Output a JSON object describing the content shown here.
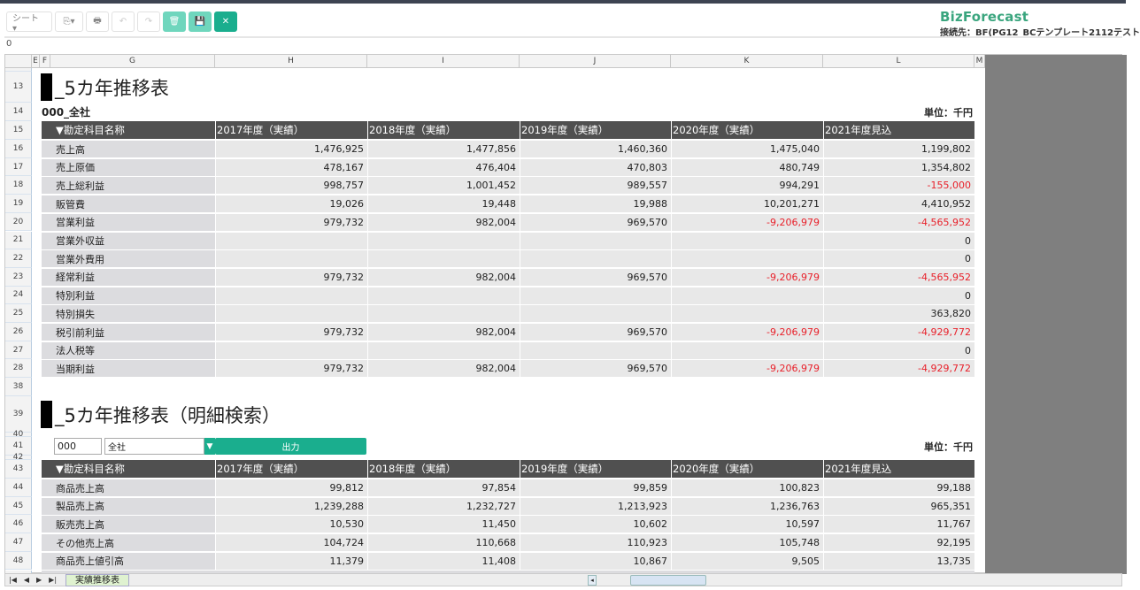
{
  "toolbar": {
    "sheet_label": "シート ▾",
    "export_label": "⎘▾",
    "print_label": "🖶",
    "undo_label": "↶",
    "redo_label": "↷",
    "delete_label": "🗑",
    "save_label": "💾",
    "close_label": "✕"
  },
  "brand": {
    "logo": "BizForecast",
    "connection": "接続先：BF(PG12_BCテンプレート2112テスト"
  },
  "formula_bar": {
    "value": "0"
  },
  "columns": [
    "E",
    "F",
    "G",
    "H",
    "I",
    "J",
    "K",
    "L",
    "M"
  ],
  "section1": {
    "title": "_5カ年推移表",
    "subtitle": "000_全社",
    "unit": "単位：千円",
    "row_numbers": [
      "13",
      "14",
      "15",
      "16",
      "17",
      "18",
      "19",
      "20",
      "21",
      "22",
      "23",
      "24",
      "25",
      "26",
      "27",
      "28"
    ],
    "headers": [
      "▼勘定科目名称",
      "2017年度（実績）",
      "2018年度（実績）",
      "2019年度（実績）",
      "2020年度（実績）",
      "2021年度見込"
    ],
    "rows": [
      [
        "売上高",
        "1,476,925",
        "1,477,856",
        "1,460,360",
        "1,475,040",
        "1,199,802"
      ],
      [
        "売上原価",
        "478,167",
        "476,404",
        "470,803",
        "480,749",
        "1,354,802"
      ],
      [
        "売上総利益",
        "998,757",
        "1,001,452",
        "989,557",
        "994,291",
        "-155,000"
      ],
      [
        "販管費",
        "19,026",
        "19,448",
        "19,988",
        "10,201,271",
        "4,410,952"
      ],
      [
        "営業利益",
        "979,732",
        "982,004",
        "969,570",
        "-9,206,979",
        "-4,565,952"
      ],
      [
        "営業外収益",
        "",
        "",
        "",
        "",
        "0"
      ],
      [
        "営業外費用",
        "",
        "",
        "",
        "",
        "0"
      ],
      [
        "経常利益",
        "979,732",
        "982,004",
        "969,570",
        "-9,206,979",
        "-4,565,952"
      ],
      [
        "特別利益",
        "",
        "",
        "",
        "",
        "0"
      ],
      [
        "特別損失",
        "",
        "",
        "",
        "",
        "363,820"
      ],
      [
        "税引前利益",
        "979,732",
        "982,004",
        "969,570",
        "-9,206,979",
        "-4,929,772"
      ],
      [
        "法人税等",
        "",
        "",
        "",
        "",
        "0"
      ],
      [
        "当期利益",
        "979,732",
        "982,004",
        "969,570",
        "-9,206,979",
        "-4,929,772"
      ]
    ]
  },
  "section2": {
    "title": "_5カ年推移表（明細検索）",
    "unit": "単位：千円",
    "code_value": "000",
    "company_value": "全社",
    "output_label": "出力",
    "row_numbers": [
      "38",
      "39",
      "40",
      "41",
      "42",
      "43",
      "44",
      "45",
      "46",
      "47",
      "48"
    ],
    "headers": [
      "▼勘定科目名称",
      "2017年度（実績）",
      "2018年度（実績）",
      "2019年度（実績）",
      "2020年度（実績）",
      "2021年度見込"
    ],
    "rows": [
      [
        "商品売上高",
        "99,812",
        "97,854",
        "99,859",
        "100,823",
        "99,188"
      ],
      [
        "製品売上高",
        "1,239,288",
        "1,232,727",
        "1,213,923",
        "1,236,763",
        "965,351"
      ],
      [
        "販売売上高",
        "10,530",
        "11,450",
        "10,602",
        "10,597",
        "11,767"
      ],
      [
        "その他売上高",
        "104,724",
        "110,668",
        "110,923",
        "105,748",
        "92,195"
      ],
      [
        "商品売上値引高",
        "11,379",
        "11,408",
        "10,867",
        "9,505",
        "13,735"
      ]
    ]
  },
  "sheet_tabs": [
    "実績推移表"
  ],
  "colors": {
    "accent": "#1aae8e",
    "header": "#505050",
    "negative": "#e8202a"
  }
}
